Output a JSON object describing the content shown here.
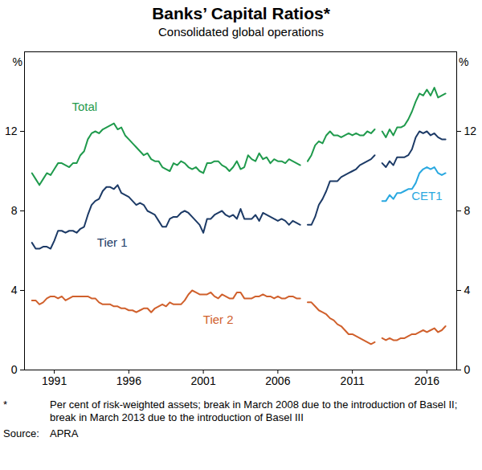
{
  "chart_data": {
    "type": "line",
    "title": "Banks’ Capital Ratios*",
    "subtitle": "Consolidated global operations",
    "y_label": "%",
    "note_marker": "*",
    "note": "Per cent of risk-weighted assets; break in March 2008 due to the introduction of Basel II; break in March 2013 due to the introduction of Basel III",
    "source_label": "Source:",
    "source": "APRA",
    "grid": false,
    "xlim": [
      1989,
      2018
    ],
    "xticks": [
      1991,
      1996,
      2001,
      2006,
      2011,
      2016
    ],
    "ylim": [
      0,
      16
    ],
    "yticks": [
      0,
      4,
      8,
      12
    ],
    "x": [
      1989.5,
      1989.75,
      1990,
      1990.25,
      1990.5,
      1990.75,
      1991,
      1991.25,
      1991.5,
      1991.75,
      1992,
      1992.25,
      1992.5,
      1992.75,
      1993,
      1993.25,
      1993.5,
      1993.75,
      1994,
      1994.25,
      1994.5,
      1994.75,
      1995,
      1995.25,
      1995.5,
      1995.75,
      1996,
      1996.25,
      1996.5,
      1996.75,
      1997,
      1997.25,
      1997.5,
      1997.75,
      1998,
      1998.25,
      1998.5,
      1998.75,
      1999,
      1999.25,
      1999.5,
      1999.75,
      2000,
      2000.25,
      2000.5,
      2000.75,
      2001,
      2001.25,
      2001.5,
      2001.75,
      2002,
      2002.25,
      2002.5,
      2002.75,
      2003,
      2003.25,
      2003.5,
      2003.75,
      2004,
      2004.25,
      2004.5,
      2004.75,
      2005,
      2005.25,
      2005.5,
      2005.75,
      2006,
      2006.25,
      2006.5,
      2006.75,
      2007,
      2007.25,
      2007.5,
      2007.75,
      2008,
      2008.25,
      2008.5,
      2008.75,
      2009,
      2009.25,
      2009.5,
      2009.75,
      2010,
      2010.25,
      2010.5,
      2010.75,
      2011,
      2011.25,
      2011.5,
      2011.75,
      2012,
      2012.25,
      2012.5,
      2012.75,
      2013,
      2013.25,
      2013.5,
      2013.75,
      2014,
      2014.25,
      2014.5,
      2014.75,
      2015,
      2015.25,
      2015.5,
      2015.75,
      2016,
      2016.25,
      2016.5,
      2016.75,
      2017,
      2017.25
    ],
    "series": [
      {
        "name": "Total",
        "color": "#1f9a4c",
        "values": [
          9.9,
          9.6,
          9.3,
          9.6,
          9.9,
          9.8,
          10.1,
          10.4,
          10.4,
          10.3,
          10.2,
          10.4,
          10.4,
          10.8,
          11.0,
          11.6,
          11.9,
          12.0,
          11.9,
          12.1,
          12.2,
          12.3,
          12.4,
          12.1,
          12.2,
          11.8,
          11.6,
          11.4,
          11.2,
          11.0,
          10.8,
          10.9,
          10.6,
          10.5,
          10.5,
          10.2,
          10.1,
          10.0,
          10.4,
          10.3,
          10.5,
          10.4,
          10.2,
          10.1,
          10.2,
          10.0,
          9.9,
          10.4,
          10.4,
          10.5,
          10.5,
          10.3,
          10.2,
          10.0,
          10.2,
          10.5,
          10.1,
          10.2,
          10.8,
          10.6,
          10.5,
          10.9,
          10.6,
          10.7,
          10.4,
          10.6,
          10.5,
          10.5,
          10.4,
          10.6,
          10.5,
          10.4,
          10.3,
          null,
          10.5,
          10.8,
          11.3,
          11.5,
          11.4,
          11.8,
          12.0,
          11.8,
          11.8,
          11.7,
          11.8,
          11.9,
          11.8,
          11.9,
          11.8,
          11.8,
          12.0,
          11.9,
          12.1,
          null,
          12.0,
          11.7,
          12.1,
          11.8,
          12.2,
          12.2,
          12.3,
          12.6,
          13.0,
          13.5,
          13.9,
          13.8,
          14.1,
          13.8,
          14.2,
          13.7,
          13.8,
          13.9
        ]
      },
      {
        "name": "Tier 1",
        "color": "#1c3a66",
        "values": [
          6.4,
          6.1,
          6.1,
          6.2,
          6.2,
          6.1,
          6.5,
          7.0,
          7.0,
          6.9,
          7.0,
          7.0,
          6.9,
          7.1,
          7.2,
          7.8,
          8.3,
          8.5,
          8.6,
          9.0,
          9.2,
          9.2,
          9.1,
          9.3,
          8.9,
          8.8,
          8.7,
          8.5,
          8.3,
          8.4,
          8.3,
          8.0,
          7.9,
          7.8,
          7.5,
          7.2,
          7.2,
          7.6,
          7.7,
          7.7,
          7.9,
          8.0,
          7.9,
          7.7,
          7.5,
          7.3,
          6.9,
          7.6,
          7.6,
          7.8,
          7.9,
          8.0,
          7.8,
          7.7,
          7.8,
          7.6,
          8.1,
          7.6,
          7.6,
          7.6,
          7.8,
          7.5,
          7.9,
          7.8,
          7.7,
          7.6,
          7.5,
          7.6,
          7.5,
          7.3,
          7.5,
          7.4,
          7.3,
          null,
          7.3,
          7.3,
          7.7,
          8.3,
          8.6,
          9.0,
          9.5,
          9.5,
          9.5,
          9.7,
          9.8,
          9.9,
          10.0,
          10.1,
          10.3,
          10.4,
          10.5,
          10.6,
          10.8,
          null,
          10.4,
          10.2,
          10.5,
          10.3,
          10.7,
          10.7,
          10.7,
          10.8,
          11.1,
          11.7,
          12.0,
          11.9,
          12.0,
          11.8,
          11.9,
          11.7,
          11.6,
          11.6
        ]
      },
      {
        "name": "Tier 2",
        "color": "#d0602c",
        "values": [
          3.5,
          3.5,
          3.3,
          3.4,
          3.6,
          3.7,
          3.7,
          3.6,
          3.7,
          3.5,
          3.6,
          3.7,
          3.7,
          3.7,
          3.7,
          3.7,
          3.6,
          3.6,
          3.4,
          3.3,
          3.3,
          3.3,
          3.2,
          3.2,
          3.1,
          3.1,
          3.0,
          3.0,
          2.9,
          3.0,
          3.1,
          3.1,
          2.9,
          3.1,
          3.2,
          3.3,
          3.2,
          3.4,
          3.3,
          3.3,
          3.3,
          3.5,
          3.8,
          4.0,
          3.9,
          3.8,
          3.8,
          3.8,
          3.9,
          3.7,
          3.6,
          3.8,
          3.7,
          3.6,
          3.6,
          3.9,
          3.9,
          3.6,
          3.6,
          3.6,
          3.7,
          3.7,
          3.8,
          3.7,
          3.7,
          3.6,
          3.7,
          3.6,
          3.6,
          3.7,
          3.7,
          3.6,
          3.6,
          null,
          3.4,
          3.4,
          3.2,
          3.0,
          2.9,
          2.8,
          2.6,
          2.5,
          2.3,
          2.2,
          2.0,
          1.8,
          1.8,
          1.7,
          1.6,
          1.5,
          1.4,
          1.3,
          1.4,
          null,
          1.6,
          1.5,
          1.6,
          1.5,
          1.5,
          1.6,
          1.6,
          1.7,
          1.8,
          1.8,
          1.9,
          2.0,
          1.9,
          2.0,
          2.1,
          1.9,
          2.0,
          2.2
        ]
      },
      {
        "name": "CET1",
        "color": "#29a8e0",
        "values": [
          null,
          null,
          null,
          null,
          null,
          null,
          null,
          null,
          null,
          null,
          null,
          null,
          null,
          null,
          null,
          null,
          null,
          null,
          null,
          null,
          null,
          null,
          null,
          null,
          null,
          null,
          null,
          null,
          null,
          null,
          null,
          null,
          null,
          null,
          null,
          null,
          null,
          null,
          null,
          null,
          null,
          null,
          null,
          null,
          null,
          null,
          null,
          null,
          null,
          null,
          null,
          null,
          null,
          null,
          null,
          null,
          null,
          null,
          null,
          null,
          null,
          null,
          null,
          null,
          null,
          null,
          null,
          null,
          null,
          null,
          null,
          null,
          null,
          null,
          null,
          null,
          null,
          null,
          null,
          null,
          null,
          null,
          null,
          null,
          null,
          null,
          null,
          null,
          null,
          null,
          null,
          null,
          null,
          null,
          8.5,
          8.5,
          8.8,
          8.6,
          8.9,
          8.9,
          9.0,
          9.1,
          9.1,
          9.4,
          9.9,
          10.1,
          10.2,
          10.1,
          10.2,
          9.9,
          9.8,
          9.9
        ]
      }
    ]
  }
}
